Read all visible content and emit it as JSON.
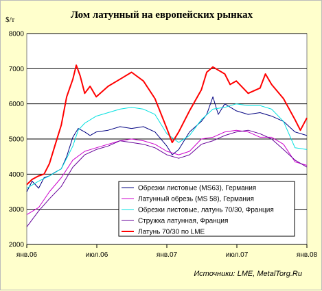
{
  "chart_data": {
    "type": "line",
    "title": "Лом латунный на европейских рынках",
    "ylabel": "$/т",
    "source": "Источники: LME, MetalTorg.Ru",
    "ylim": [
      2000,
      8000
    ],
    "yticks": [
      "8000",
      "7000",
      "6000",
      "5000",
      "4000",
      "3000",
      "2000"
    ],
    "xticks": [
      "янв.06",
      "июл.06",
      "янв.07",
      "июл.07",
      "янв.08"
    ],
    "xlim": [
      "2006-01-01",
      "2008-01-01"
    ],
    "grid": "horizontal",
    "legend_position": "lower-right",
    "series": [
      {
        "name": "Обрезки листовые (MS63), Германия",
        "color": "#000080",
        "x": [
          "2006-01-01",
          "2006-01-15",
          "2006-02-01",
          "2006-02-15",
          "2006-03-01",
          "2006-03-15",
          "2006-04-01",
          "2006-04-15",
          "2006-05-01",
          "2006-05-15",
          "2006-06-01",
          "2006-06-15",
          "2006-07-01",
          "2006-08-01",
          "2006-09-01",
          "2006-10-01",
          "2006-11-01",
          "2006-12-01",
          "2007-01-01",
          "2007-01-15",
          "2007-02-01",
          "2007-03-01",
          "2007-04-01",
          "2007-04-15",
          "2007-05-01",
          "2007-05-15",
          "2007-06-01",
          "2007-07-01",
          "2007-08-01",
          "2007-09-01",
          "2007-10-01",
          "2007-11-01",
          "2007-12-01",
          "2008-01-01"
        ],
        "y": [
          3500,
          3800,
          3600,
          3900,
          3950,
          4050,
          4150,
          4500,
          5050,
          5300,
          5200,
          5100,
          5200,
          5250,
          5350,
          5300,
          5350,
          5200,
          4800,
          4550,
          4700,
          5200,
          5500,
          5700,
          6200,
          5700,
          6000,
          5800,
          5700,
          5750,
          5650,
          5500,
          5200,
          5100
        ]
      },
      {
        "name": "Латунный обрезь (MS 58), Германия",
        "color": "#cc00cc",
        "x": [
          "2006-01-01",
          "2006-02-01",
          "2006-03-01",
          "2006-04-01",
          "2006-05-01",
          "2006-06-01",
          "2006-07-01",
          "2006-08-01",
          "2006-09-01",
          "2006-10-01",
          "2006-11-01",
          "2006-12-01",
          "2007-01-01",
          "2007-02-01",
          "2007-03-01",
          "2007-04-01",
          "2007-05-01",
          "2007-06-01",
          "2007-07-01",
          "2007-08-01",
          "2007-09-01",
          "2007-10-01",
          "2007-11-01",
          "2007-12-01",
          "2008-01-01"
        ],
        "y": [
          2850,
          3050,
          3500,
          3900,
          4400,
          4650,
          4750,
          4850,
          4950,
          5000,
          4950,
          4850,
          4650,
          4550,
          4650,
          5000,
          5050,
          5200,
          5250,
          5200,
          5050,
          5050,
          4850,
          4350,
          4250
        ]
      },
      {
        "name": "Обрезки листовые, латунь 70/30, Франция",
        "color": "#00e0e0",
        "x": [
          "2006-01-01",
          "2006-02-01",
          "2006-03-01",
          "2006-04-01",
          "2006-05-01",
          "2006-05-15",
          "2006-06-01",
          "2006-07-01",
          "2006-08-01",
          "2006-09-01",
          "2006-10-01",
          "2006-11-01",
          "2006-12-01",
          "2007-01-01",
          "2007-02-01",
          "2007-03-01",
          "2007-04-01",
          "2007-05-01",
          "2007-06-01",
          "2007-07-01",
          "2007-08-01",
          "2007-09-01",
          "2007-10-01",
          "2007-11-01",
          "2007-12-01",
          "2008-01-01"
        ],
        "y": [
          3600,
          3800,
          3950,
          4150,
          4800,
          5250,
          5450,
          5650,
          5750,
          5850,
          5900,
          5850,
          5700,
          5150,
          4900,
          5100,
          5550,
          5850,
          5900,
          6000,
          5950,
          5950,
          5850,
          5500,
          4750,
          4700
        ]
      },
      {
        "name": "Стружка латунная, Франция",
        "color": "#660099",
        "x": [
          "2006-01-01",
          "2006-02-01",
          "2006-03-01",
          "2006-04-01",
          "2006-05-01",
          "2006-06-01",
          "2006-07-01",
          "2006-08-01",
          "2006-09-01",
          "2006-10-01",
          "2006-11-01",
          "2006-12-01",
          "2007-01-01",
          "2007-02-01",
          "2007-03-01",
          "2007-04-01",
          "2007-05-01",
          "2007-06-01",
          "2007-07-01",
          "2007-08-01",
          "2007-09-01",
          "2007-10-01",
          "2007-11-01",
          "2007-12-01",
          "2008-01-01"
        ],
        "y": [
          2500,
          2950,
          3300,
          3650,
          4200,
          4550,
          4700,
          4800,
          4950,
          4900,
          4850,
          4750,
          4550,
          4450,
          4550,
          4850,
          4950,
          5100,
          5200,
          5250,
          5150,
          5000,
          4700,
          4400,
          4200
        ]
      },
      {
        "name": "Латунь 70/30 по LME",
        "color": "#ff0000",
        "x": [
          "2006-01-01",
          "2006-01-15",
          "2006-02-01",
          "2006-02-15",
          "2006-03-01",
          "2006-03-15",
          "2006-04-01",
          "2006-04-15",
          "2006-05-01",
          "2006-05-10",
          "2006-05-20",
          "2006-06-01",
          "2006-06-15",
          "2006-07-01",
          "2006-08-01",
          "2006-09-01",
          "2006-10-01",
          "2006-11-01",
          "2006-12-01",
          "2007-01-01",
          "2007-01-15",
          "2007-02-01",
          "2007-03-01",
          "2007-04-01",
          "2007-04-15",
          "2007-05-01",
          "2007-06-01",
          "2007-06-15",
          "2007-07-01",
          "2007-08-01",
          "2007-09-01",
          "2007-09-15",
          "2007-10-01",
          "2007-11-01",
          "2007-12-01",
          "2007-12-15",
          "2008-01-01"
        ],
        "y": [
          3700,
          3850,
          3950,
          4000,
          4300,
          4800,
          5400,
          6200,
          6700,
          7100,
          6800,
          6300,
          6500,
          6200,
          6500,
          6700,
          6900,
          6650,
          6150,
          5300,
          4900,
          5200,
          5800,
          6400,
          6900,
          7050,
          6850,
          6550,
          6650,
          6300,
          6450,
          6850,
          6550,
          6150,
          5550,
          5250,
          5600
        ]
      }
    ]
  }
}
